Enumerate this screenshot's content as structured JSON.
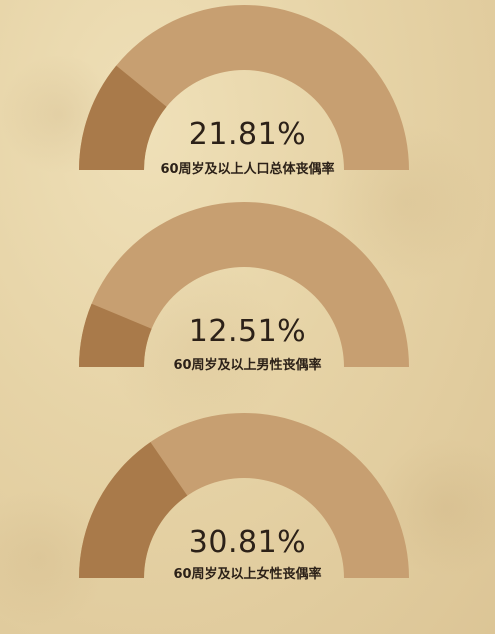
{
  "chart_data": [
    {
      "type": "gauge",
      "value": 21.81,
      "ylim": [
        0,
        100
      ],
      "value_label": "21.81%",
      "label": "60周岁及以上人口总体丧偶率"
    },
    {
      "type": "gauge",
      "value": 12.51,
      "ylim": [
        0,
        100
      ],
      "value_label": "12.51%",
      "label": "60周岁及以上男性丧偶率"
    },
    {
      "type": "gauge",
      "value": 30.81,
      "ylim": [
        0,
        100
      ],
      "value_label": "30.81%",
      "label": "60周岁及以上女性丧偶率"
    }
  ],
  "colors": {
    "track": "#c79f71",
    "fill": "#a97a4a"
  }
}
